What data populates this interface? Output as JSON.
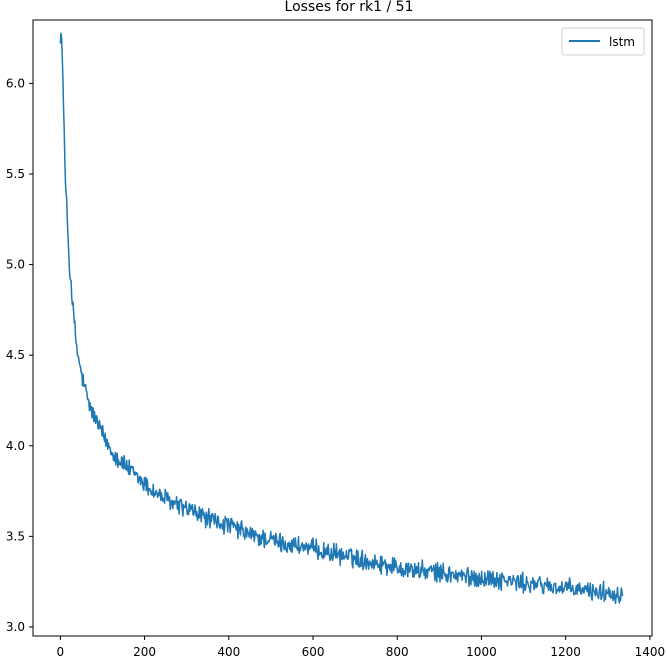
{
  "chart_data": {
    "type": "line",
    "title": "Losses for rk1 / 51",
    "xlabel": "",
    "ylabel": "",
    "xlim": [
      -65,
      1405
    ],
    "ylim": [
      2.95,
      6.35
    ],
    "x_ticks": [
      0,
      200,
      400,
      600,
      800,
      1000,
      1200,
      1400
    ],
    "x_tick_labels": [
      "0",
      "200",
      "400",
      "600",
      "800",
      "1000",
      "1200",
      "1400"
    ],
    "y_ticks": [
      3.0,
      3.5,
      4.0,
      4.5,
      5.0,
      5.5,
      6.0
    ],
    "y_tick_labels": [
      "3.0",
      "3.5",
      "4.0",
      "4.5",
      "5.0",
      "5.5",
      "6.0"
    ],
    "grid": false,
    "legend": {
      "position": "top-right",
      "entries": [
        "lstm"
      ]
    },
    "series": [
      {
        "name": "lstm",
        "color": "#1f77b4",
        "x": [
          0,
          2,
          4,
          6,
          8,
          10,
          12,
          15,
          18,
          20,
          22,
          25,
          28,
          30,
          33,
          36,
          40,
          45,
          50,
          55,
          60,
          65,
          70,
          75,
          80,
          90,
          100,
          110,
          120,
          130,
          140,
          150,
          160,
          170,
          180,
          190,
          200,
          220,
          240,
          260,
          280,
          300,
          320,
          340,
          360,
          380,
          400,
          420,
          440,
          460,
          480,
          500,
          530,
          560,
          600,
          640,
          680,
          720,
          760,
          800,
          850,
          900,
          950,
          1000,
          1050,
          1100,
          1150,
          1200,
          1250,
          1300,
          1335
        ],
        "y": [
          6.25,
          6.28,
          6.18,
          6.02,
          5.85,
          5.62,
          5.45,
          5.32,
          5.18,
          5.05,
          4.98,
          4.9,
          4.82,
          4.75,
          4.68,
          4.6,
          4.52,
          4.45,
          4.4,
          4.34,
          4.3,
          4.25,
          4.22,
          4.19,
          4.16,
          4.12,
          4.06,
          4.02,
          3.98,
          3.95,
          3.92,
          3.9,
          3.88,
          3.85,
          3.83,
          3.81,
          3.79,
          3.75,
          3.72,
          3.69,
          3.67,
          3.65,
          3.63,
          3.61,
          3.59,
          3.57,
          3.56,
          3.54,
          3.52,
          3.5,
          3.49,
          3.48,
          3.46,
          3.45,
          3.43,
          3.41,
          3.39,
          3.37,
          3.35,
          3.33,
          3.31,
          3.3,
          3.28,
          3.27,
          3.26,
          3.24,
          3.23,
          3.21,
          3.2,
          3.19,
          3.18
        ],
        "noise_amplitude": [
          0.02,
          0.03,
          0.03,
          0.03,
          0.03,
          0.04,
          0.04,
          0.04,
          0.04,
          0.04,
          0.04,
          0.045,
          0.045,
          0.045,
          0.045,
          0.045,
          0.045,
          0.045,
          0.045,
          0.045,
          0.045,
          0.045,
          0.045,
          0.045,
          0.045,
          0.045,
          0.045,
          0.045,
          0.045,
          0.045,
          0.045,
          0.045,
          0.045,
          0.045,
          0.045,
          0.045,
          0.045,
          0.045,
          0.045,
          0.045,
          0.045,
          0.045,
          0.045,
          0.045,
          0.045,
          0.045,
          0.045,
          0.045,
          0.045,
          0.045,
          0.045,
          0.045,
          0.045,
          0.045,
          0.045,
          0.045,
          0.045,
          0.045,
          0.045,
          0.045,
          0.045,
          0.045,
          0.045,
          0.045,
          0.045,
          0.045,
          0.045,
          0.045,
          0.045,
          0.045,
          0.045
        ]
      }
    ]
  }
}
